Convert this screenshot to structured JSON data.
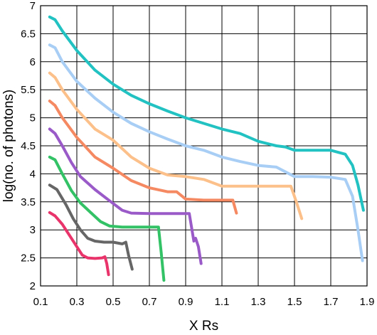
{
  "chart_data": {
    "type": "line",
    "title": "",
    "xlabel": "X Rs",
    "ylabel": "log(no. of photons)",
    "xlim": [
      0.1,
      1.9
    ],
    "ylim": [
      2,
      7
    ],
    "xticks": [
      0.1,
      0.3,
      0.5,
      0.7,
      0.9,
      1.1,
      1.3,
      1.5,
      1.7,
      1.9
    ],
    "xtick_labels": [
      "0.1",
      "0.3",
      "0.5",
      "0.7",
      "0.9",
      "1.1",
      "1.3",
      "1.5",
      "1.7",
      "1.9"
    ],
    "yticks": [
      2,
      2.5,
      3,
      3.5,
      4,
      4.5,
      5,
      5.5,
      6,
      6.5,
      7
    ],
    "ytick_labels": [
      "2",
      "2.5",
      "3",
      "3.5",
      "4",
      "4.5",
      "5",
      "5.5",
      "6",
      "6.5",
      "7"
    ],
    "grid": true,
    "legend": "none",
    "series": [
      {
        "color": "#e8346a",
        "points": [
          [
            0.15,
            3.31
          ],
          [
            0.18,
            3.25
          ],
          [
            0.22,
            3.1
          ],
          [
            0.26,
            2.9
          ],
          [
            0.3,
            2.7
          ],
          [
            0.33,
            2.55
          ],
          [
            0.36,
            2.5
          ],
          [
            0.4,
            2.49
          ],
          [
            0.44,
            2.5
          ],
          [
            0.455,
            2.52
          ],
          [
            0.465,
            2.4
          ],
          [
            0.475,
            2.2
          ]
        ]
      },
      {
        "color": "#666666",
        "points": [
          [
            0.15,
            3.8
          ],
          [
            0.19,
            3.72
          ],
          [
            0.24,
            3.45
          ],
          [
            0.28,
            3.2
          ],
          [
            0.32,
            3.0
          ],
          [
            0.36,
            2.85
          ],
          [
            0.4,
            2.8
          ],
          [
            0.45,
            2.78
          ],
          [
            0.5,
            2.78
          ],
          [
            0.55,
            2.75
          ],
          [
            0.57,
            2.78
          ],
          [
            0.585,
            2.55
          ],
          [
            0.605,
            2.3
          ]
        ]
      },
      {
        "color": "#33c266",
        "points": [
          [
            0.15,
            4.3
          ],
          [
            0.18,
            4.25
          ],
          [
            0.22,
            4.0
          ],
          [
            0.27,
            3.7
          ],
          [
            0.32,
            3.48
          ],
          [
            0.38,
            3.3
          ],
          [
            0.43,
            3.15
          ],
          [
            0.48,
            3.07
          ],
          [
            0.55,
            3.05
          ],
          [
            0.65,
            3.05
          ],
          [
            0.75,
            3.05
          ],
          [
            0.765,
            2.6
          ],
          [
            0.78,
            2.1
          ]
        ]
      },
      {
        "color": "#9a5bc9",
        "points": [
          [
            0.15,
            4.8
          ],
          [
            0.18,
            4.72
          ],
          [
            0.22,
            4.5
          ],
          [
            0.27,
            4.2
          ],
          [
            0.32,
            3.95
          ],
          [
            0.4,
            3.72
          ],
          [
            0.48,
            3.52
          ],
          [
            0.55,
            3.35
          ],
          [
            0.6,
            3.3
          ],
          [
            0.7,
            3.29
          ],
          [
            0.85,
            3.29
          ],
          [
            0.92,
            3.29
          ],
          [
            0.945,
            2.8
          ],
          [
            0.955,
            2.85
          ],
          [
            0.97,
            2.7
          ],
          [
            0.985,
            2.4
          ]
        ]
      },
      {
        "color": "#f58a62",
        "points": [
          [
            0.15,
            5.3
          ],
          [
            0.18,
            5.22
          ],
          [
            0.22,
            5.0
          ],
          [
            0.3,
            4.65
          ],
          [
            0.4,
            4.3
          ],
          [
            0.5,
            4.1
          ],
          [
            0.6,
            3.88
          ],
          [
            0.7,
            3.75
          ],
          [
            0.8,
            3.68
          ],
          [
            0.85,
            3.68
          ],
          [
            0.9,
            3.55
          ],
          [
            1.0,
            3.53
          ],
          [
            1.1,
            3.53
          ],
          [
            1.16,
            3.53
          ],
          [
            1.18,
            3.3
          ]
        ]
      },
      {
        "color": "#fcc08a",
        "points": [
          [
            0.15,
            5.8
          ],
          [
            0.18,
            5.72
          ],
          [
            0.22,
            5.5
          ],
          [
            0.3,
            5.15
          ],
          [
            0.4,
            4.8
          ],
          [
            0.5,
            4.6
          ],
          [
            0.6,
            4.3
          ],
          [
            0.7,
            4.1
          ],
          [
            0.8,
            3.98
          ],
          [
            0.9,
            3.95
          ],
          [
            1.0,
            3.9
          ],
          [
            1.1,
            3.78
          ],
          [
            1.3,
            3.78
          ],
          [
            1.48,
            3.78
          ],
          [
            1.51,
            3.5
          ],
          [
            1.54,
            3.2
          ]
        ]
      },
      {
        "color": "#a8cef5",
        "points": [
          [
            0.15,
            6.3
          ],
          [
            0.18,
            6.25
          ],
          [
            0.22,
            6.0
          ],
          [
            0.3,
            5.65
          ],
          [
            0.4,
            5.35
          ],
          [
            0.5,
            5.1
          ],
          [
            0.6,
            4.9
          ],
          [
            0.7,
            4.75
          ],
          [
            0.8,
            4.62
          ],
          [
            0.9,
            4.5
          ],
          [
            1.0,
            4.42
          ],
          [
            1.1,
            4.3
          ],
          [
            1.2,
            4.22
          ],
          [
            1.3,
            4.15
          ],
          [
            1.4,
            4.12
          ],
          [
            1.5,
            3.95
          ],
          [
            1.6,
            3.95
          ],
          [
            1.7,
            3.94
          ],
          [
            1.78,
            3.9
          ],
          [
            1.82,
            3.6
          ],
          [
            1.85,
            3.0
          ],
          [
            1.875,
            2.45
          ]
        ]
      },
      {
        "color": "#22c2c2",
        "points": [
          [
            0.15,
            6.8
          ],
          [
            0.18,
            6.75
          ],
          [
            0.22,
            6.55
          ],
          [
            0.3,
            6.2
          ],
          [
            0.4,
            5.85
          ],
          [
            0.5,
            5.6
          ],
          [
            0.6,
            5.4
          ],
          [
            0.7,
            5.25
          ],
          [
            0.8,
            5.12
          ],
          [
            0.9,
            5.0
          ],
          [
            1.0,
            4.9
          ],
          [
            1.1,
            4.8
          ],
          [
            1.2,
            4.72
          ],
          [
            1.3,
            4.58
          ],
          [
            1.4,
            4.5
          ],
          [
            1.45,
            4.48
          ],
          [
            1.5,
            4.42
          ],
          [
            1.6,
            4.42
          ],
          [
            1.7,
            4.42
          ],
          [
            1.78,
            4.35
          ],
          [
            1.82,
            4.15
          ],
          [
            1.85,
            3.8
          ],
          [
            1.88,
            3.35
          ]
        ]
      }
    ]
  }
}
